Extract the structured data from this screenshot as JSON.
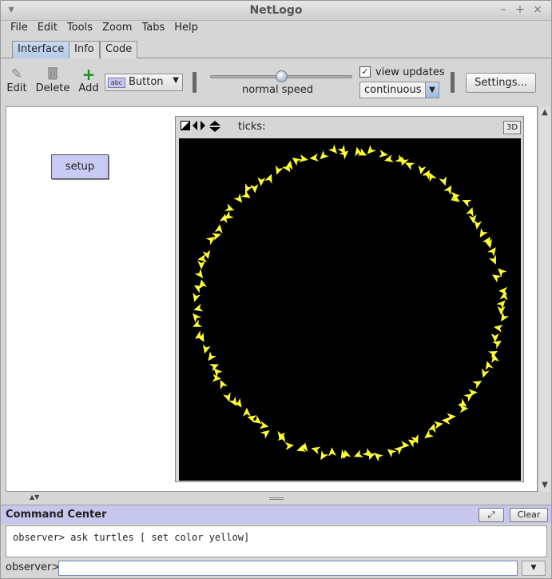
{
  "window": {
    "title": "NetLogo"
  },
  "menu": [
    "File",
    "Edit",
    "Tools",
    "Zoom",
    "Tabs",
    "Help"
  ],
  "tabs": [
    {
      "label": "Interface",
      "active": true
    },
    {
      "label": "Info",
      "active": false
    },
    {
      "label": "Code",
      "active": false
    }
  ],
  "toolbar": {
    "edit_label": "Edit",
    "delete_label": "Delete",
    "add_label": "Add",
    "widget_type": "Button",
    "widget_type_icon_text": "abc",
    "speed_label": "normal speed",
    "speed_value": 0.5,
    "view_updates_label": "view updates",
    "view_updates_checked": true,
    "update_mode": "continuous",
    "settings_label": "Settings...",
    "add_icon_color": "#1e8a1e"
  },
  "widgets": {
    "setup_label": "setup"
  },
  "view": {
    "ticks_label": "ticks:",
    "btn_3d": "3D",
    "turtle_color": "#ffff33",
    "background_color": "#000000"
  },
  "command_center": {
    "title": "Command Center",
    "clear_label": "Clear",
    "output_line": "observer> ask turtles [ set color yellow]",
    "prompt": "observer>",
    "input_value": ""
  }
}
